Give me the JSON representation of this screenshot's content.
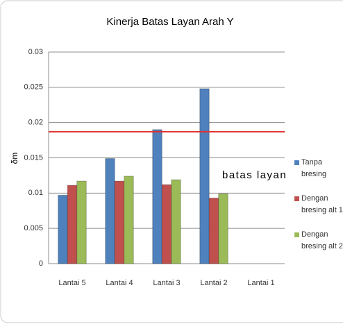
{
  "chart_data": {
    "type": "bar",
    "title": "Kinerja Batas Layan Arah Y",
    "y_label": "δm",
    "categories": [
      "Lantai 5",
      "Lantai 4",
      "Lantai 3",
      "Lantai 2",
      "Lantai 1"
    ],
    "series": [
      {
        "name": "Tanpa bresing",
        "color": "#4f81bd",
        "values": [
          0.0097,
          0.0149,
          0.019,
          0.0248,
          null
        ]
      },
      {
        "name": "Dengan bresing alt 1",
        "color": "#c0504d",
        "values": [
          0.0111,
          0.0117,
          0.0112,
          0.0093,
          null
        ]
      },
      {
        "name": "Dengan bresing alt 2",
        "color": "#9bbb59",
        "values": [
          0.0117,
          0.0124,
          0.0119,
          0.0099,
          null
        ]
      }
    ],
    "ylim": [
      0,
      0.03
    ],
    "yticks": [
      0,
      0.005,
      0.01,
      0.015,
      0.02,
      0.025,
      0.03
    ],
    "grid": true,
    "reference_line": {
      "value": 0.0187,
      "label": "batas layan",
      "color": "#e03030"
    },
    "legend": "right"
  }
}
